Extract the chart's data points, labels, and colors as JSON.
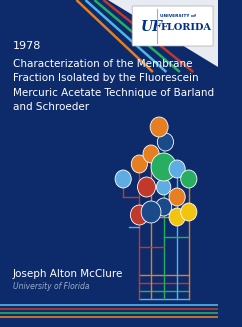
{
  "bg_color": "#0d2a6b",
  "year": "1978",
  "title_lines": [
    "Characterization of the Membrane",
    "Fraction Isolated by the Fluorescein",
    "Mercuric Acetate Technique of Barland",
    "and Schroeder"
  ],
  "author": "Joseph Alton McClure",
  "institution": "University of Florida",
  "year_fontsize": 8,
  "title_fontsize": 7.5,
  "author_fontsize": 7.5,
  "inst_fontsize": 5.5,
  "text_color": "#ffffff",
  "inst_color": "#9aafc8",
  "stripe_colors": [
    "#c0392b",
    "#4db8e8",
    "#27ae60",
    "#e67e22"
  ],
  "bottom_stripe_colors": [
    "#4db8e8",
    "#c0392b",
    "#27ae60",
    "#e67e22"
  ],
  "uf_box_color": "#ffffff"
}
